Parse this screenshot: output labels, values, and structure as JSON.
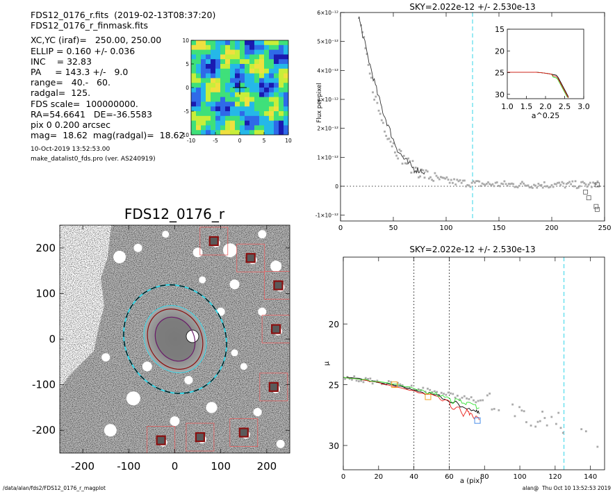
{
  "info": {
    "lines_top": [
      "FDS12_0176_r.fits  (2019-02-13T08:37:20)",
      "FDS12_0176_r_finmask.fits"
    ],
    "lines_params": [
      "XC,YC (iraf)=   250.00, 250.00",
      "ELLIP = 0.160 +/- 0.036",
      "INC    = 32.83",
      "PA     = 143.3 +/-   9.0",
      "range=   40.-   60.",
      "radgal=  125.",
      "FDS scale=  100000000.",
      "RA=54.6641   DE=-36.5583",
      "pix 0 0.200 arcsec",
      "mag=  18.62  mag(radgal)=  18.62"
    ],
    "lines_small": [
      "10-Oct-2019 13:52:53.00",
      "make_datalist0_fds.pro (ver. AS240919)"
    ]
  },
  "footer": {
    "left": "/data/alan/fds2/FDS12_0176_r_magplot",
    "right": "alan@  Thu Oct 10 13:52:53 2019"
  },
  "colors": {
    "cyan": "#33d6e8",
    "red": "#e8201a",
    "green": "#2fe02f",
    "orange": "#f0a020",
    "blue": "#4a8ee8",
    "darkred": "#8a0f0f",
    "purple": "#6a1a6a"
  },
  "chart_data": [
    {
      "id": "thumbnail",
      "type": "heatmap",
      "title": "",
      "xlim": [
        -10,
        10
      ],
      "ylim": [
        -10,
        10
      ],
      "xticks": [
        -10,
        -5,
        0,
        5,
        10
      ],
      "yticks": [
        -10,
        -5,
        0,
        5,
        10
      ]
    },
    {
      "id": "flux",
      "type": "scatter",
      "title": "SKY=2.022e-12 +/- 2.530e-13",
      "xlabel": "",
      "ylabel": "Flux per pixel",
      "xlim": [
        0,
        250
      ],
      "ylim": [
        -1.2e-12,
        6e-12
      ],
      "xticks": [
        0,
        50,
        100,
        150,
        200,
        250
      ],
      "yticks": [
        -1e-12,
        0,
        1e-12,
        2e-12,
        3e-12,
        4e-12,
        5e-12,
        6e-12
      ],
      "ytick_labels": [
        "-1×10⁻¹²",
        "0",
        "1×10⁻¹²",
        "2×10⁻¹²",
        "3×10⁻¹²",
        "4×10⁻¹²",
        "5×10⁻¹²",
        "6×10⁻¹²"
      ],
      "radgal_line": 125,
      "profile_x": [
        17,
        20,
        25,
        30,
        35,
        40,
        45,
        50,
        55,
        60,
        65,
        70,
        75,
        80
      ],
      "profile_y": [
        5.9e-12,
        5.4e-12,
        4.6e-12,
        3.9e-12,
        3.2e-12,
        2.6e-12,
        2.1e-12,
        1.6e-12,
        1.2e-12,
        9.5e-13,
        7.5e-13,
        6e-13,
        5.5e-13,
        5e-13
      ],
      "outliers": [
        [
          232,
          -2e-13
        ],
        [
          235,
          -4e-13
        ],
        [
          243,
          5e-14
        ],
        [
          242,
          -7e-13
        ],
        [
          243,
          -8e-13
        ]
      ],
      "inset": {
        "xlabel": "a^0.25",
        "xlim": [
          1.0,
          3.0
        ],
        "ylim": [
          15,
          31
        ],
        "xticks": [
          1.0,
          1.5,
          2.0,
          2.5,
          3.0
        ],
        "xtick_labels": [
          "1.0",
          "1.5",
          "2.0",
          "2.5",
          "3.0"
        ],
        "yticks": [
          15,
          20,
          25,
          30
        ]
      }
    },
    {
      "id": "image",
      "type": "heatmap",
      "title": "FDS12_0176_r",
      "xlim": [
        -250,
        250
      ],
      "ylim": [
        -250,
        250
      ],
      "xticks": [
        -200,
        -100,
        0,
        100,
        200
      ],
      "yticks": [
        -200,
        -100,
        0,
        100,
        200
      ],
      "masked_sources": [
        [
          85,
          215
        ],
        [
          165,
          178
        ],
        [
          225,
          118
        ],
        [
          220,
          22
        ],
        [
          215,
          -105
        ],
        [
          150,
          -205
        ],
        [
          55,
          -215
        ],
        [
          -30,
          -222
        ]
      ]
    },
    {
      "id": "mu",
      "type": "line",
      "title": "SKY=2.022e-12 +/- 2.530e-13",
      "xlabel": "a (pix)",
      "ylabel": "μ",
      "xlim": [
        0,
        148
      ],
      "ylim": [
        32,
        14.5
      ],
      "xticks": [
        0,
        20,
        40,
        60,
        80,
        100,
        120,
        140
      ],
      "yticks": [
        20,
        25,
        30
      ],
      "vlines_dotted": [
        40,
        60
      ],
      "vline_dashed": 125,
      "series": [
        {
          "color": "black",
          "x": [
            0,
            5,
            10,
            15,
            20,
            25,
            30,
            35,
            40,
            45,
            50,
            55,
            60,
            65,
            70,
            75,
            77
          ],
          "y": [
            24.4,
            24.45,
            24.55,
            24.7,
            24.8,
            24.95,
            25.1,
            25.25,
            25.45,
            25.6,
            25.8,
            26.0,
            26.3,
            26.6,
            26.9,
            27.2,
            27.4
          ]
        },
        {
          "color": "red",
          "x": [
            0,
            10,
            20,
            30,
            40,
            50,
            55,
            60,
            62,
            65,
            68,
            70,
            72,
            75,
            77
          ],
          "y": [
            24.4,
            24.6,
            24.85,
            25.15,
            25.5,
            25.95,
            26.2,
            26.5,
            26.9,
            26.8,
            27.6,
            27.0,
            27.5,
            27.7,
            27.9
          ]
        },
        {
          "color": "green",
          "x": [
            0,
            10,
            20,
            30,
            40,
            50,
            55,
            60,
            62,
            65,
            68,
            70,
            75,
            77
          ],
          "y": [
            24.4,
            24.55,
            24.75,
            25.0,
            25.3,
            25.7,
            25.9,
            26.1,
            26.4,
            26.2,
            26.6,
            26.5,
            26.8,
            26.9
          ]
        }
      ]
    }
  ]
}
